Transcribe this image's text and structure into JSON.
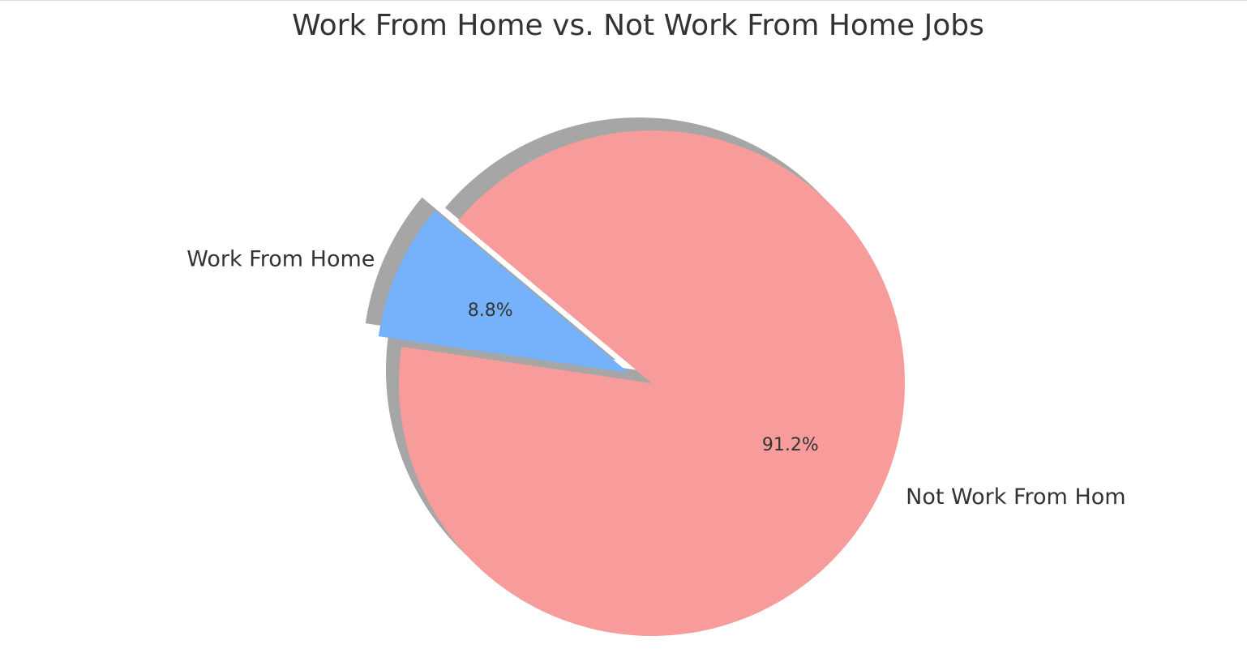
{
  "chart_data": {
    "type": "pie",
    "title": "Work From Home vs. Not Work From Home Jobs",
    "slices": [
      {
        "label": "Work From Home",
        "value": 8.8,
        "pct_label": "8.8%",
        "color": "#76b2fb",
        "exploded": true
      },
      {
        "label": "Not Work From Hom",
        "value": 91.2,
        "pct_label": "91.2%",
        "color": "#f89b9b",
        "exploded": false
      }
    ],
    "shadow": true,
    "legend": "none"
  }
}
